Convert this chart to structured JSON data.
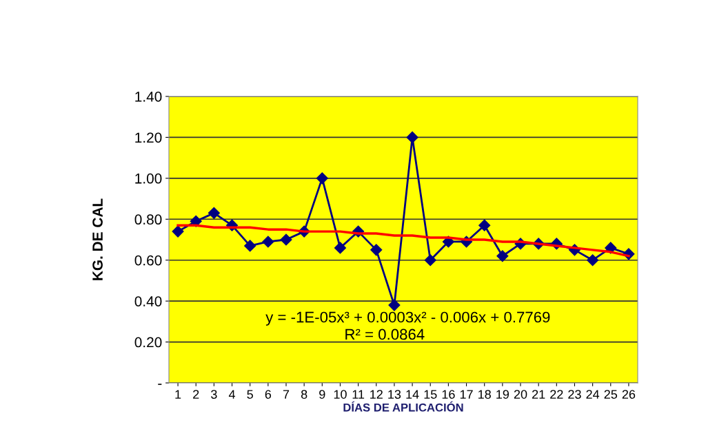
{
  "chart_data": {
    "type": "line",
    "xlabel": "DÍAS DE APLICACIÓN",
    "ylabel": "KG. DE CAL",
    "categories": [
      "1",
      "2",
      "3",
      "4",
      "5",
      "6",
      "7",
      "8",
      "9",
      "10",
      "11",
      "12",
      "13",
      "14",
      "15",
      "16",
      "17",
      "18",
      "19",
      "20",
      "21",
      "22",
      "23",
      "24",
      "25",
      "26"
    ],
    "series": [
      {
        "color": "#000080",
        "marker": "diamond",
        "values": [
          0.74,
          0.79,
          0.83,
          0.77,
          0.67,
          0.69,
          0.7,
          0.74,
          1.0,
          0.66,
          0.74,
          0.65,
          0.38,
          1.2,
          0.6,
          0.69,
          0.69,
          0.77,
          0.62,
          0.68,
          0.68,
          0.68,
          0.65,
          0.6,
          0.66,
          0.63
        ]
      },
      {
        "color": "#ff0000",
        "marker": "none",
        "values": [
          0.77,
          0.77,
          0.76,
          0.76,
          0.76,
          0.75,
          0.75,
          0.74,
          0.74,
          0.74,
          0.73,
          0.73,
          0.72,
          0.72,
          0.71,
          0.71,
          0.7,
          0.7,
          0.69,
          0.69,
          0.68,
          0.67,
          0.66,
          0.65,
          0.64,
          0.62
        ]
      }
    ],
    "ylim": [
      0,
      1.4
    ],
    "yticks": [
      {
        "value": 0,
        "label": "-"
      },
      {
        "value": 0.2,
        "label": "0.20"
      },
      {
        "value": 0.4,
        "label": "0.40"
      },
      {
        "value": 0.6,
        "label": "0.60"
      },
      {
        "value": 0.8,
        "label": "0.80"
      },
      {
        "value": 1.0,
        "label": "1.00"
      },
      {
        "value": 1.2,
        "label": "1.20"
      },
      {
        "value": 1.4,
        "label": "1.40"
      }
    ],
    "grid": "y",
    "annotations": [
      "y = -1E-05x³ + 0.0003x² - 0.006x + 0.7769",
      "R² = 0.0864"
    ]
  }
}
